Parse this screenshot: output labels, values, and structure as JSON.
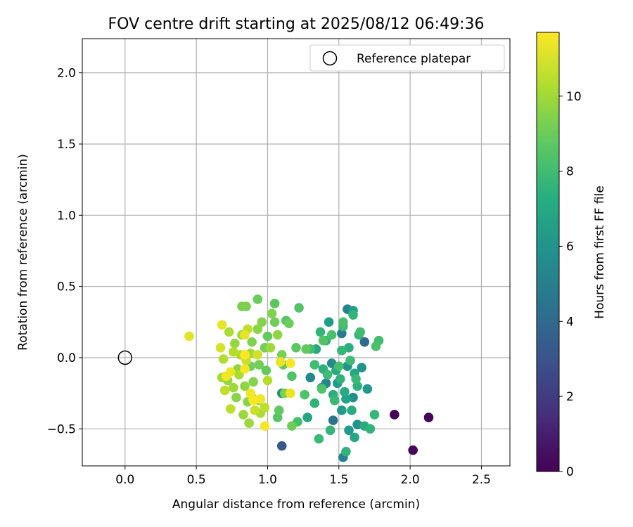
{
  "chart_data": {
    "type": "scatter",
    "title": "FOV centre drift starting at 2025/08/12 06:49:36",
    "xlabel": "Angular distance from reference (arcmin)",
    "ylabel": "Rotation from reference (arcmin)",
    "xlim": [
      -0.3,
      2.7
    ],
    "ylim": [
      -0.76,
      2.24
    ],
    "xticks": [
      0.0,
      0.5,
      1.0,
      1.5,
      2.0,
      2.5
    ],
    "xtick_labels": [
      "0.0",
      "0.5",
      "1.0",
      "1.5",
      "2.0",
      "2.5"
    ],
    "yticks": [
      -0.5,
      0.0,
      0.5,
      1.0,
      1.5,
      2.0
    ],
    "ytick_labels": [
      "−0.5",
      "0.0",
      "0.5",
      "1.0",
      "1.5",
      "2.0"
    ],
    "grid": true,
    "legend": {
      "placement": "upper right",
      "entries": [
        "Reference platepar"
      ]
    },
    "reference_point": {
      "x": 0.0,
      "y": 0.0
    },
    "colorbar": {
      "label": "Hours from first FF file",
      "colormap": "viridis",
      "range": [
        0,
        11.7
      ],
      "ticks": [
        0,
        2,
        4,
        6,
        8,
        10
      ],
      "tick_labels": [
        "0",
        "2",
        "4",
        "6",
        "8",
        "10"
      ]
    },
    "series": [
      {
        "points": [
          {
            "x": 1.89,
            "y": -0.4,
            "c": 0.1
          },
          {
            "x": 2.13,
            "y": -0.42,
            "c": 0.1
          },
          {
            "x": 2.02,
            "y": -0.65,
            "c": 0.2
          },
          {
            "x": 1.1,
            "y": -0.62,
            "c": 3.2
          },
          {
            "x": 1.68,
            "y": 0.11,
            "c": 4.0
          },
          {
            "x": 1.46,
            "y": -0.44,
            "c": 4.5
          },
          {
            "x": 1.52,
            "y": 0.17,
            "c": 5.0
          },
          {
            "x": 1.56,
            "y": 0.34,
            "c": 5.2
          },
          {
            "x": 1.53,
            "y": -0.7,
            "c": 5.3
          },
          {
            "x": 1.41,
            "y": -0.18,
            "c": 5.3
          },
          {
            "x": 1.3,
            "y": -0.14,
            "c": 5.5
          },
          {
            "x": 1.45,
            "y": -0.04,
            "c": 5.6
          },
          {
            "x": 1.6,
            "y": -0.28,
            "c": 5.8
          },
          {
            "x": 1.1,
            "y": -0.25,
            "c": 5.8
          },
          {
            "x": 1.56,
            "y": -0.06,
            "c": 6.0
          },
          {
            "x": 1.63,
            "y": -0.47,
            "c": 6.0
          },
          {
            "x": 1.66,
            "y": -0.07,
            "c": 6.1
          },
          {
            "x": 1.7,
            "y": -0.22,
            "c": 6.2
          },
          {
            "x": 1.57,
            "y": -0.51,
            "c": 6.3
          },
          {
            "x": 1.49,
            "y": -0.18,
            "c": 6.4
          },
          {
            "x": 1.52,
            "y": -0.37,
            "c": 6.4
          },
          {
            "x": 1.43,
            "y": 0.25,
            "c": 6.5
          },
          {
            "x": 1.6,
            "y": 0.33,
            "c": 6.6
          },
          {
            "x": 1.55,
            "y": -0.29,
            "c": 6.7
          },
          {
            "x": 1.38,
            "y": -0.21,
            "c": 6.8
          },
          {
            "x": 1.28,
            "y": -0.42,
            "c": 6.8
          },
          {
            "x": 1.61,
            "y": -0.56,
            "c": 6.9
          },
          {
            "x": 1.61,
            "y": -0.11,
            "c": 7.0
          },
          {
            "x": 1.34,
            "y": 0.06,
            "c": 7.0
          },
          {
            "x": 1.48,
            "y": -0.09,
            "c": 7.1
          },
          {
            "x": 1.54,
            "y": -0.24,
            "c": 7.1
          },
          {
            "x": 1.68,
            "y": -0.48,
            "c": 7.2
          },
          {
            "x": 1.59,
            "y": -0.37,
            "c": 7.2
          },
          {
            "x": 1.46,
            "y": -0.26,
            "c": 7.3
          },
          {
            "x": 1.57,
            "y": 0.07,
            "c": 7.3
          },
          {
            "x": 1.39,
            "y": -0.08,
            "c": 7.4
          },
          {
            "x": 1.63,
            "y": -0.2,
            "c": 7.4
          },
          {
            "x": 1.51,
            "y": -0.15,
            "c": 7.5
          },
          {
            "x": 1.41,
            "y": 0.12,
            "c": 7.5
          },
          {
            "x": 1.72,
            "y": -0.5,
            "c": 7.6
          },
          {
            "x": 1.55,
            "y": -0.66,
            "c": 7.6
          },
          {
            "x": 1.33,
            "y": -0.32,
            "c": 7.6
          },
          {
            "x": 1.37,
            "y": 0.18,
            "c": 7.7
          },
          {
            "x": 1.6,
            "y": 0.3,
            "c": 7.7
          },
          {
            "x": 1.44,
            "y": -0.51,
            "c": 7.7
          },
          {
            "x": 1.75,
            "y": -0.4,
            "c": 7.8
          },
          {
            "x": 1.52,
            "y": 0.05,
            "c": 7.8
          },
          {
            "x": 1.64,
            "y": 0.16,
            "c": 7.8
          },
          {
            "x": 1.47,
            "y": -0.3,
            "c": 7.9
          },
          {
            "x": 1.36,
            "y": -0.57,
            "c": 7.9
          },
          {
            "x": 1.62,
            "y": -0.15,
            "c": 7.9
          },
          {
            "x": 1.53,
            "y": 0.22,
            "c": 8.0
          },
          {
            "x": 1.42,
            "y": -0.12,
            "c": 8.0
          },
          {
            "x": 1.58,
            "y": -0.02,
            "c": 8.0
          },
          {
            "x": 1.78,
            "y": 0.12,
            "c": 8.1
          },
          {
            "x": 1.65,
            "y": 0.18,
            "c": 8.1
          },
          {
            "x": 1.33,
            "y": -0.05,
            "c": 8.1
          },
          {
            "x": 1.5,
            "y": -0.06,
            "c": 8.2
          },
          {
            "x": 1.3,
            "y": 0.06,
            "c": 8.2
          },
          {
            "x": 1.21,
            "y": -0.45,
            "c": 8.2
          },
          {
            "x": 1.76,
            "y": 0.08,
            "c": 8.3
          },
          {
            "x": 1.45,
            "y": 0.16,
            "c": 8.3
          },
          {
            "x": 1.53,
            "y": 0.25,
            "c": 8.3
          },
          {
            "x": 1.26,
            "y": -0.26,
            "c": 8.4
          },
          {
            "x": 1.38,
            "y": -0.22,
            "c": 8.4
          },
          {
            "x": 1.17,
            "y": -0.13,
            "c": 8.4
          },
          {
            "x": 1.39,
            "y": 0.12,
            "c": 8.5
          },
          {
            "x": 1.22,
            "y": 0.35,
            "c": 8.5
          },
          {
            "x": 1.07,
            "y": -0.42,
            "c": 8.6
          },
          {
            "x": 1.13,
            "y": 0.26,
            "c": 8.6
          },
          {
            "x": 1.05,
            "y": 0.38,
            "c": 8.7
          },
          {
            "x": 1.2,
            "y": 0.07,
            "c": 8.7
          },
          {
            "x": 1.11,
            "y": -0.05,
            "c": 8.8
          },
          {
            "x": 1.27,
            "y": 0.06,
            "c": 8.8
          },
          {
            "x": 1.08,
            "y": -0.37,
            "c": 8.8
          },
          {
            "x": 0.99,
            "y": -0.09,
            "c": 8.9
          },
          {
            "x": 1.0,
            "y": 0.15,
            "c": 8.9
          },
          {
            "x": 0.93,
            "y": 0.41,
            "c": 9.0
          },
          {
            "x": 1.15,
            "y": 0.24,
            "c": 9.0
          },
          {
            "x": 1.05,
            "y": 0.25,
            "c": 9.1
          },
          {
            "x": 1.17,
            "y": -0.48,
            "c": 9.1
          },
          {
            "x": 0.88,
            "y": -0.06,
            "c": 9.1
          },
          {
            "x": 0.94,
            "y": -0.05,
            "c": 9.2
          },
          {
            "x": 0.98,
            "y": 0.07,
            "c": 9.2
          },
          {
            "x": 0.85,
            "y": 0.36,
            "c": 9.3
          },
          {
            "x": 1.1,
            "y": 0.02,
            "c": 9.3
          },
          {
            "x": 0.82,
            "y": 0.36,
            "c": 9.3
          },
          {
            "x": 0.89,
            "y": 0.11,
            "c": 9.4
          },
          {
            "x": 1.12,
            "y": -0.25,
            "c": 9.4
          },
          {
            "x": 1.03,
            "y": 0.31,
            "c": 9.4
          },
          {
            "x": 0.96,
            "y": 0.25,
            "c": 9.5
          },
          {
            "x": 0.9,
            "y": -0.17,
            "c": 9.5
          },
          {
            "x": 0.93,
            "y": 0.2,
            "c": 9.6
          },
          {
            "x": 0.78,
            "y": -0.28,
            "c": 9.6
          },
          {
            "x": 0.86,
            "y": -0.31,
            "c": 9.6
          },
          {
            "x": 1.07,
            "y": 0.16,
            "c": 9.7
          },
          {
            "x": 0.79,
            "y": -0.08,
            "c": 9.7
          },
          {
            "x": 0.84,
            "y": -0.2,
            "c": 9.7
          },
          {
            "x": 0.77,
            "y": 0.1,
            "c": 9.8
          },
          {
            "x": 0.72,
            "y": -0.16,
            "c": 9.8
          },
          {
            "x": 0.83,
            "y": -0.4,
            "c": 9.9
          },
          {
            "x": 0.94,
            "y": -0.3,
            "c": 9.9
          },
          {
            "x": 0.87,
            "y": -0.46,
            "c": 9.9
          },
          {
            "x": 1.02,
            "y": 0.07,
            "c": 10.0
          },
          {
            "x": 0.82,
            "y": 0.16,
            "c": 10.0
          },
          {
            "x": 0.76,
            "y": -0.21,
            "c": 10.0
          },
          {
            "x": 0.68,
            "y": -0.14,
            "c": 10.1
          },
          {
            "x": 0.88,
            "y": 0.03,
            "c": 10.1
          },
          {
            "x": 0.73,
            "y": 0.18,
            "c": 10.2
          },
          {
            "x": 0.95,
            "y": -0.39,
            "c": 10.2
          },
          {
            "x": 0.8,
            "y": -0.12,
            "c": 10.2
          },
          {
            "x": 0.89,
            "y": -0.28,
            "c": 10.3
          },
          {
            "x": 0.81,
            "y": 0.02,
            "c": 10.3
          },
          {
            "x": 0.69,
            "y": -0.01,
            "c": 10.3
          },
          {
            "x": 0.76,
            "y": 0.04,
            "c": 10.4
          },
          {
            "x": 1.0,
            "y": -0.16,
            "c": 10.4
          },
          {
            "x": 0.74,
            "y": -0.36,
            "c": 10.5
          },
          {
            "x": 0.98,
            "y": -0.35,
            "c": 10.5
          },
          {
            "x": 0.86,
            "y": 0.2,
            "c": 10.6
          },
          {
            "x": 0.7,
            "y": -0.23,
            "c": 10.6
          },
          {
            "x": 0.91,
            "y": -0.37,
            "c": 10.7
          },
          {
            "x": 0.85,
            "y": -0.02,
            "c": 10.8
          },
          {
            "x": 0.93,
            "y": 0.02,
            "c": 10.9
          },
          {
            "x": 0.67,
            "y": 0.07,
            "c": 11.0
          },
          {
            "x": 0.45,
            "y": 0.15,
            "c": 11.2
          },
          {
            "x": 0.68,
            "y": 0.23,
            "c": 11.3
          },
          {
            "x": 0.84,
            "y": 0.16,
            "c": 11.3
          },
          {
            "x": 1.09,
            "y": -0.03,
            "c": 11.4
          },
          {
            "x": 1.16,
            "y": -0.25,
            "c": 11.4
          },
          {
            "x": 0.74,
            "y": -0.1,
            "c": 11.4
          },
          {
            "x": 0.88,
            "y": -0.25,
            "c": 11.5
          },
          {
            "x": 0.95,
            "y": -0.29,
            "c": 11.5
          },
          {
            "x": 0.71,
            "y": -0.13,
            "c": 11.5
          },
          {
            "x": 0.84,
            "y": -0.08,
            "c": 11.6
          },
          {
            "x": 0.98,
            "y": -0.48,
            "c": 11.6
          },
          {
            "x": 1.16,
            "y": -0.04,
            "c": 11.6
          },
          {
            "x": 0.9,
            "y": -0.3,
            "c": 11.7
          },
          {
            "x": 0.84,
            "y": 0.02,
            "c": 11.7
          }
        ]
      }
    ]
  }
}
